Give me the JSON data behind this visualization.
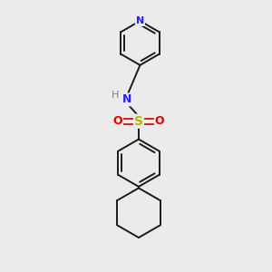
{
  "background_color": "#ebebeb",
  "bond_color": "#1a1a1a",
  "nitrogen_color": "#2020ff",
  "sulfur_color": "#b8b800",
  "oxygen_color": "#dd0000",
  "hydrogen_color": "#808080",
  "figsize": [
    3.0,
    3.0
  ],
  "dpi": 100,
  "xlim": [
    0,
    10
  ],
  "ylim": [
    0,
    10
  ]
}
